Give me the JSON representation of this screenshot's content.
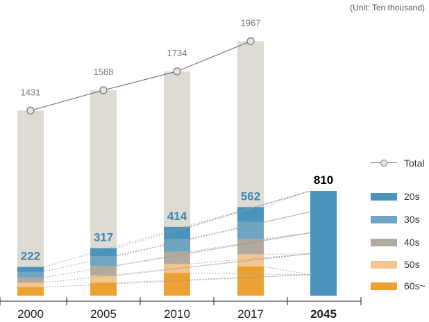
{
  "unit_note": "(Unit: Ten thousand)",
  "legend": [
    {
      "label": "Total",
      "kind": "line"
    },
    {
      "label": "20s",
      "kind": "swatch",
      "color": "#4a93bd"
    },
    {
      "label": "30s",
      "kind": "swatch",
      "color": "#6ea6c2"
    },
    {
      "label": "40s",
      "kind": "swatch",
      "color": "#b2aa9e"
    },
    {
      "label": "50s",
      "kind": "swatch",
      "color": "#f2c68d"
    },
    {
      "label": "60s~",
      "kind": "swatch",
      "color": "#eca132"
    }
  ],
  "chart_data": {
    "type": "bar",
    "stacked": true,
    "categories": [
      "2000",
      "2005",
      "2010",
      "2017",
      "2045"
    ],
    "highlight_category": "2045",
    "ylim": [
      0,
      2200
    ],
    "series": [
      {
        "name": "60s~",
        "color": "#eca132",
        "values": [
          65,
          100,
          175,
          225,
          null
        ]
      },
      {
        "name": "50s",
        "color": "#f2c68d",
        "values": [
          35,
          55,
          70,
          95,
          null
        ]
      },
      {
        "name": "40s",
        "color": "#b2aa9e",
        "values": [
          40,
          75,
          95,
          120,
          null
        ]
      },
      {
        "name": "30s",
        "color": "#6ea6c2",
        "values": [
          45,
          75,
          100,
          130,
          null
        ]
      },
      {
        "name": "20s",
        "color": "#4a93bd",
        "values": [
          37,
          62,
          92,
          115,
          810
        ]
      }
    ],
    "segment_labels": [
      222,
      317,
      414,
      562,
      810
    ],
    "total": {
      "name": "Total",
      "values": [
        1431,
        1588,
        1734,
        1967,
        null
      ],
      "bar_color": "#dedbd3",
      "line_color": "#7a7a7a",
      "marker_fill": "#e4e4e4"
    },
    "label_colors": {
      "highlight": "#3f86b3",
      "total": "#7a7a7a",
      "forecast": "#000000",
      "axis": "#222222"
    },
    "connectors": "dotted lines from each age-band boundary across 2000–2017 to the 2045 bar"
  }
}
